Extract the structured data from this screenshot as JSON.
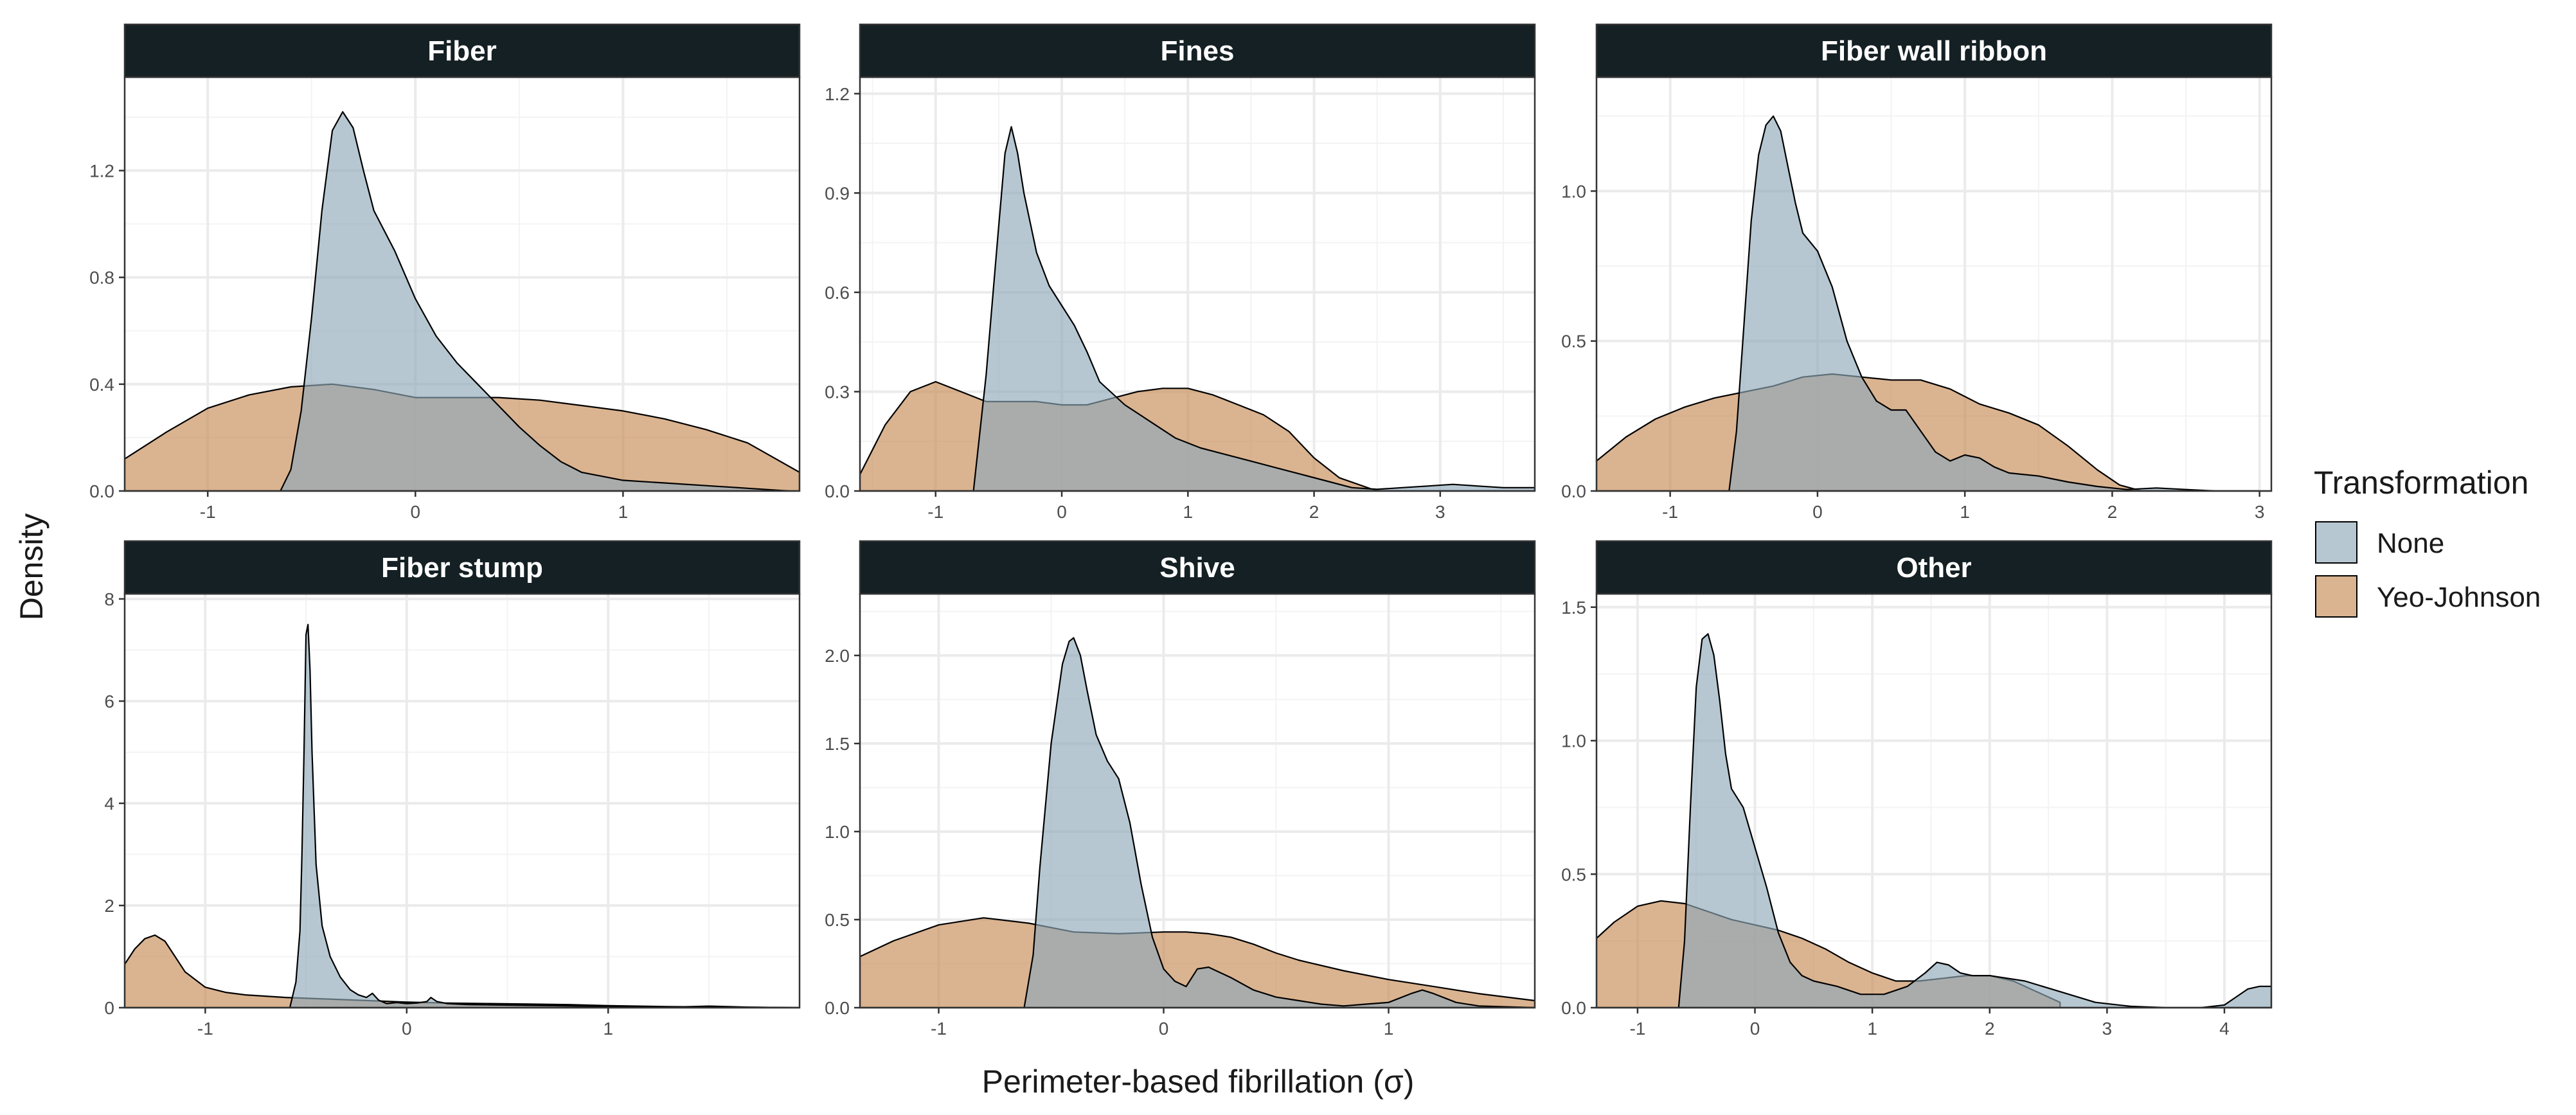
{
  "chart_data": {
    "type": "area",
    "xlabel": "Perimeter-based fibrillation (σ)",
    "ylabel": "Density",
    "legend": {
      "title": "Transformation",
      "position": "right",
      "entries": [
        {
          "name": "None",
          "color": "#8fa9b8"
        },
        {
          "name": "Yeo-Johnson",
          "color": "#c68a55"
        }
      ]
    },
    "panels": [
      {
        "title": "Fiber",
        "xlim": [
          -1.4,
          1.85
        ],
        "ylim": [
          0,
          1.55
        ],
        "xticks": [
          -1,
          0,
          1
        ],
        "xtick_labels": [
          "-1",
          "0",
          "1"
        ],
        "yticks": [
          0,
          0.4,
          0.8,
          1.2
        ],
        "ytick_labels": [
          "0.0",
          "0.4",
          "0.8",
          "1.2"
        ],
        "series": [
          {
            "name": "Yeo-Johnson",
            "x": [
              -1.4,
              -1.2,
              -1.0,
              -0.8,
              -0.6,
              -0.4,
              -0.2,
              0.0,
              0.2,
              0.4,
              0.6,
              0.8,
              1.0,
              1.2,
              1.4,
              1.6,
              1.85
            ],
            "y": [
              0.12,
              0.22,
              0.31,
              0.36,
              0.39,
              0.4,
              0.38,
              0.35,
              0.35,
              0.35,
              0.34,
              0.32,
              0.3,
              0.27,
              0.23,
              0.18,
              0.07
            ]
          },
          {
            "name": "None",
            "x": [
              -0.65,
              -0.6,
              -0.55,
              -0.5,
              -0.45,
              -0.4,
              -0.35,
              -0.3,
              -0.25,
              -0.2,
              -0.1,
              0.0,
              0.1,
              0.2,
              0.3,
              0.4,
              0.5,
              0.6,
              0.7,
              0.8,
              1.0,
              1.2,
              1.4,
              1.6,
              1.8
            ],
            "y": [
              0.0,
              0.08,
              0.3,
              0.65,
              1.05,
              1.35,
              1.42,
              1.36,
              1.2,
              1.05,
              0.9,
              0.72,
              0.58,
              0.48,
              0.4,
              0.32,
              0.24,
              0.17,
              0.11,
              0.07,
              0.04,
              0.03,
              0.02,
              0.01,
              0.0
            ]
          }
        ]
      },
      {
        "title": "Fines",
        "xlim": [
          -1.6,
          3.75
        ],
        "ylim": [
          0,
          1.25
        ],
        "xticks": [
          -1,
          0,
          1,
          2,
          3
        ],
        "xtick_labels": [
          "-1",
          "0",
          "1",
          "2",
          "3"
        ],
        "yticks": [
          0,
          0.3,
          0.6,
          0.9,
          1.2
        ],
        "ytick_labels": [
          "0.0",
          "0.3",
          "0.6",
          "0.9",
          "1.2"
        ],
        "series": [
          {
            "name": "Yeo-Johnson",
            "x": [
              -1.6,
              -1.4,
              -1.2,
              -1.0,
              -0.8,
              -0.6,
              -0.4,
              -0.2,
              0.0,
              0.2,
              0.4,
              0.6,
              0.8,
              1.0,
              1.2,
              1.4,
              1.6,
              1.8,
              2.0,
              2.2,
              2.5
            ],
            "y": [
              0.05,
              0.2,
              0.3,
              0.33,
              0.3,
              0.27,
              0.27,
              0.27,
              0.26,
              0.26,
              0.28,
              0.3,
              0.31,
              0.31,
              0.29,
              0.26,
              0.23,
              0.18,
              0.1,
              0.04,
              0.0
            ]
          },
          {
            "name": "None",
            "x": [
              -0.7,
              -0.6,
              -0.5,
              -0.45,
              -0.4,
              -0.35,
              -0.3,
              -0.2,
              -0.1,
              0.0,
              0.1,
              0.2,
              0.3,
              0.5,
              0.7,
              0.9,
              1.1,
              1.3,
              1.5,
              1.7,
              1.9,
              2.1,
              2.3,
              2.5,
              2.7,
              2.9,
              3.1,
              3.3,
              3.5,
              3.75
            ],
            "y": [
              0.0,
              0.35,
              0.8,
              1.02,
              1.1,
              1.02,
              0.9,
              0.72,
              0.62,
              0.56,
              0.5,
              0.42,
              0.33,
              0.26,
              0.21,
              0.16,
              0.13,
              0.11,
              0.09,
              0.07,
              0.05,
              0.03,
              0.01,
              0.005,
              0.01,
              0.015,
              0.02,
              0.015,
              0.01,
              0.01
            ]
          }
        ]
      },
      {
        "title": "Fiber wall ribbon",
        "xlim": [
          -1.5,
          3.08
        ],
        "ylim": [
          0,
          1.38
        ],
        "xticks": [
          -1,
          0,
          1,
          2,
          3
        ],
        "xtick_labels": [
          "-1",
          "0",
          "1",
          "2",
          "3"
        ],
        "yticks": [
          0,
          0.5,
          1.0
        ],
        "ytick_labels": [
          "0.0",
          "0.5",
          "1.0"
        ],
        "series": [
          {
            "name": "Yeo-Johnson",
            "x": [
              -1.5,
              -1.3,
              -1.1,
              -0.9,
              -0.7,
              -0.5,
              -0.3,
              -0.1,
              0.1,
              0.3,
              0.5,
              0.7,
              0.9,
              1.1,
              1.3,
              1.5,
              1.7,
              1.9,
              2.05,
              2.2
            ],
            "y": [
              0.1,
              0.18,
              0.24,
              0.28,
              0.31,
              0.33,
              0.35,
              0.38,
              0.39,
              0.38,
              0.37,
              0.37,
              0.34,
              0.29,
              0.26,
              0.22,
              0.15,
              0.07,
              0.02,
              0.0
            ]
          },
          {
            "name": "None",
            "x": [
              -0.6,
              -0.55,
              -0.5,
              -0.45,
              -0.4,
              -0.35,
              -0.3,
              -0.25,
              -0.2,
              -0.15,
              -0.1,
              0.0,
              0.1,
              0.2,
              0.3,
              0.4,
              0.5,
              0.6,
              0.7,
              0.8,
              0.9,
              1.0,
              1.1,
              1.2,
              1.3,
              1.5,
              1.7,
              1.9,
              2.1,
              2.3,
              2.5,
              2.7,
              3.0
            ],
            "y": [
              0.0,
              0.2,
              0.55,
              0.9,
              1.12,
              1.22,
              1.25,
              1.2,
              1.08,
              0.96,
              0.86,
              0.8,
              0.68,
              0.5,
              0.38,
              0.3,
              0.27,
              0.27,
              0.2,
              0.13,
              0.1,
              0.12,
              0.11,
              0.08,
              0.06,
              0.05,
              0.03,
              0.015,
              0.005,
              0.01,
              0.005,
              0.0,
              0.0
            ]
          }
        ]
      },
      {
        "title": "Fiber stump",
        "xlim": [
          -1.4,
          1.95
        ],
        "ylim": [
          0,
          8.1
        ],
        "xticks": [
          -1,
          0,
          1
        ],
        "xtick_labels": [
          "-1",
          "0",
          "1"
        ],
        "yticks": [
          0,
          2,
          4,
          6,
          8
        ],
        "ytick_labels": [
          "0",
          "2",
          "4",
          "6",
          "8"
        ],
        "series": [
          {
            "name": "Yeo-Johnson",
            "x": [
              -1.4,
              -1.35,
              -1.3,
              -1.25,
              -1.2,
              -1.15,
              -1.1,
              -1.0,
              -0.9,
              -0.8,
              -0.6,
              -0.4,
              -0.2,
              0.0,
              0.2,
              0.4,
              0.6,
              0.8,
              1.0,
              1.3,
              1.6,
              1.95
            ],
            "y": [
              0.85,
              1.15,
              1.35,
              1.42,
              1.3,
              1.0,
              0.7,
              0.4,
              0.3,
              0.25,
              0.2,
              0.17,
              0.14,
              0.11,
              0.09,
              0.08,
              0.07,
              0.06,
              0.04,
              0.02,
              0.01,
              0.0
            ]
          },
          {
            "name": "None",
            "x": [
              -0.58,
              -0.55,
              -0.53,
              -0.52,
              -0.51,
              -0.5,
              -0.49,
              -0.48,
              -0.47,
              -0.45,
              -0.42,
              -0.38,
              -0.33,
              -0.28,
              -0.24,
              -0.2,
              -0.17,
              -0.14,
              -0.1,
              -0.05,
              0.0,
              0.05,
              0.1,
              0.12,
              0.15,
              0.2,
              0.3,
              0.5,
              0.7,
              0.9,
              1.1,
              1.3,
              1.5,
              1.7,
              1.9
            ],
            "y": [
              0.0,
              0.5,
              1.5,
              3.0,
              5.0,
              7.3,
              7.5,
              6.6,
              5.0,
              2.8,
              1.6,
              1.0,
              0.6,
              0.35,
              0.25,
              0.2,
              0.28,
              0.15,
              0.08,
              0.1,
              0.08,
              0.09,
              0.12,
              0.2,
              0.12,
              0.08,
              0.06,
              0.05,
              0.04,
              0.03,
              0.02,
              0.01,
              0.03,
              0.01,
              0.0
            ]
          }
        ]
      },
      {
        "title": "Shive",
        "xlim": [
          -1.35,
          1.65
        ],
        "ylim": [
          0,
          2.35
        ],
        "xticks": [
          -1,
          0,
          1
        ],
        "xtick_labels": [
          "-1",
          "0",
          "1"
        ],
        "yticks": [
          0,
          0.5,
          1.0,
          1.5,
          2.0
        ],
        "ytick_labels": [
          "0.0",
          "0.5",
          "1.0",
          "1.5",
          "2.0"
        ],
        "series": [
          {
            "name": "Yeo-Johnson",
            "x": [
              -1.35,
              -1.2,
              -1.0,
              -0.8,
              -0.6,
              -0.4,
              -0.2,
              0.0,
              0.1,
              0.2,
              0.3,
              0.4,
              0.5,
              0.6,
              0.8,
              1.0,
              1.2,
              1.4,
              1.65
            ],
            "y": [
              0.29,
              0.38,
              0.47,
              0.51,
              0.48,
              0.43,
              0.42,
              0.43,
              0.43,
              0.42,
              0.4,
              0.36,
              0.31,
              0.27,
              0.21,
              0.16,
              0.12,
              0.08,
              0.04
            ]
          },
          {
            "name": "None",
            "x": [
              -0.62,
              -0.58,
              -0.55,
              -0.5,
              -0.45,
              -0.42,
              -0.4,
              -0.37,
              -0.34,
              -0.3,
              -0.25,
              -0.2,
              -0.15,
              -0.1,
              -0.05,
              0.0,
              0.05,
              0.1,
              0.15,
              0.2,
              0.25,
              0.3,
              0.4,
              0.5,
              0.6,
              0.7,
              0.8,
              0.9,
              1.0,
              1.1,
              1.15,
              1.2,
              1.3,
              1.4,
              1.65
            ],
            "y": [
              0.0,
              0.3,
              0.8,
              1.5,
              1.95,
              2.08,
              2.1,
              2.0,
              1.8,
              1.55,
              1.4,
              1.3,
              1.05,
              0.7,
              0.4,
              0.22,
              0.15,
              0.12,
              0.22,
              0.23,
              0.2,
              0.17,
              0.1,
              0.06,
              0.04,
              0.02,
              0.01,
              0.02,
              0.03,
              0.08,
              0.1,
              0.08,
              0.03,
              0.01,
              0.0
            ]
          }
        ]
      },
      {
        "title": "Other",
        "xlim": [
          -1.35,
          4.4
        ],
        "ylim": [
          0,
          1.55
        ],
        "xticks": [
          -1,
          0,
          1,
          2,
          3,
          4
        ],
        "xtick_labels": [
          "-1",
          "0",
          "1",
          "2",
          "3",
          "4"
        ],
        "yticks": [
          0,
          0.5,
          1.0,
          1.5
        ],
        "ytick_labels": [
          "0.0",
          "0.5",
          "1.0",
          "1.5"
        ],
        "series": [
          {
            "name": "Yeo-Johnson",
            "x": [
              -1.35,
              -1.2,
              -1.0,
              -0.8,
              -0.6,
              -0.4,
              -0.2,
              0.0,
              0.2,
              0.4,
              0.6,
              0.8,
              1.0,
              1.2,
              1.4,
              1.6,
              1.8,
              2.0,
              2.2,
              2.4,
              2.6
            ],
            "y": [
              0.26,
              0.32,
              0.38,
              0.4,
              0.39,
              0.36,
              0.33,
              0.31,
              0.29,
              0.26,
              0.22,
              0.17,
              0.13,
              0.1,
              0.1,
              0.11,
              0.12,
              0.12,
              0.1,
              0.06,
              0.02
            ]
          },
          {
            "name": "None",
            "x": [
              -0.65,
              -0.6,
              -0.55,
              -0.5,
              -0.45,
              -0.4,
              -0.35,
              -0.3,
              -0.25,
              -0.2,
              -0.1,
              0.0,
              0.1,
              0.2,
              0.3,
              0.4,
              0.5,
              0.7,
              0.9,
              1.1,
              1.3,
              1.45,
              1.55,
              1.65,
              1.75,
              1.85,
              2.0,
              2.3,
              2.6,
              2.9,
              3.2,
              3.5,
              3.8,
              4.0,
              4.1,
              4.2,
              4.3,
              4.4
            ],
            "y": [
              0.0,
              0.25,
              0.75,
              1.2,
              1.38,
              1.4,
              1.32,
              1.15,
              0.95,
              0.82,
              0.75,
              0.6,
              0.45,
              0.28,
              0.17,
              0.12,
              0.1,
              0.08,
              0.05,
              0.05,
              0.08,
              0.13,
              0.17,
              0.16,
              0.13,
              0.12,
              0.12,
              0.1,
              0.06,
              0.02,
              0.005,
              0.0,
              0.0,
              0.01,
              0.04,
              0.07,
              0.08,
              0.08
            ]
          }
        ]
      }
    ]
  }
}
